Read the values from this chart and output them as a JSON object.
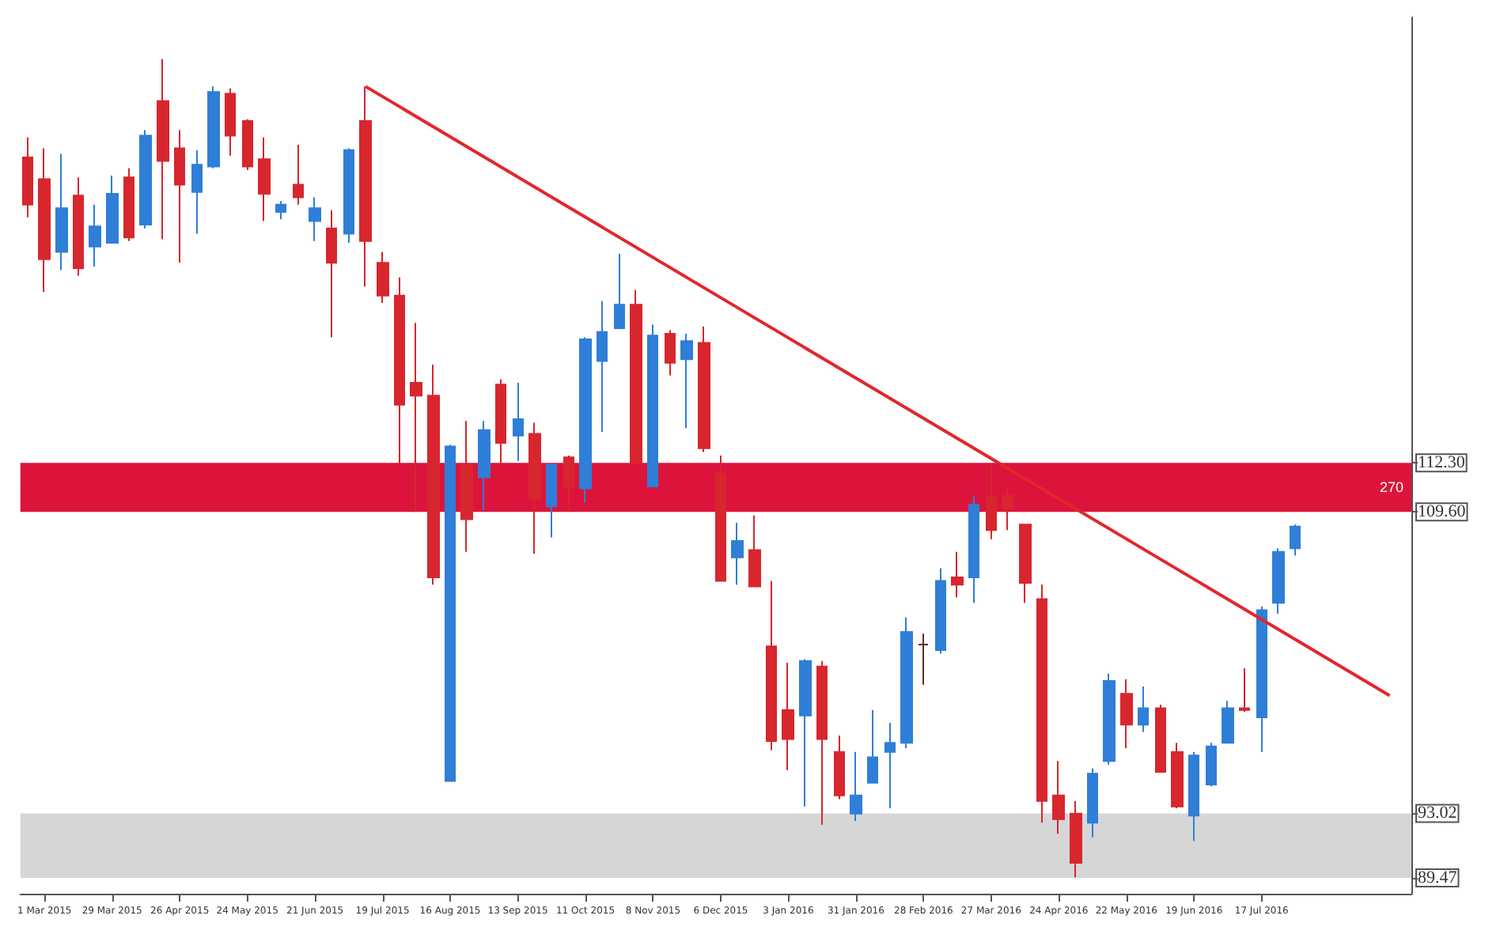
{
  "chart_data": {
    "type": "candlestick",
    "x": [
      "2015-02-22",
      "2015-03-01",
      "2015-03-08",
      "2015-03-15",
      "2015-03-22",
      "2015-03-29",
      "2015-04-05",
      "2015-04-12",
      "2015-04-19",
      "2015-04-26",
      "2015-05-03",
      "2015-05-10",
      "2015-05-17",
      "2015-05-24",
      "2015-05-31",
      "2015-06-07",
      "2015-06-14",
      "2015-06-21",
      "2015-06-28",
      "2015-07-05",
      "2015-07-12",
      "2015-07-19",
      "2015-07-26",
      "2015-08-02",
      "2015-08-09",
      "2015-08-16",
      "2015-08-23",
      "2015-08-30",
      "2015-09-06",
      "2015-09-13",
      "2015-09-20",
      "2015-09-27",
      "2015-10-04",
      "2015-10-11",
      "2015-10-18",
      "2015-10-25",
      "2015-11-01",
      "2015-11-08",
      "2015-11-15",
      "2015-11-22",
      "2015-11-29",
      "2015-12-06",
      "2015-12-13",
      "2015-12-20",
      "2015-12-27",
      "2016-01-03",
      "2016-01-10",
      "2016-01-17",
      "2016-01-24",
      "2016-01-31",
      "2016-02-07",
      "2016-02-14",
      "2016-02-21",
      "2016-02-28",
      "2016-03-06",
      "2016-03-13",
      "2016-03-20",
      "2016-03-27",
      "2016-04-03",
      "2016-04-10",
      "2016-04-17",
      "2016-04-24",
      "2016-05-01",
      "2016-05-08",
      "2016-05-15",
      "2016-05-22",
      "2016-05-29",
      "2016-06-05",
      "2016-06-12",
      "2016-06-19",
      "2016-06-26",
      "2016-07-03",
      "2016-07-10",
      "2016-07-17",
      "2016-07-24",
      "2016-07-31"
    ],
    "ohlc": [
      [
        129.1,
        130.2,
        125.8,
        126.5
      ],
      [
        127.9,
        129.6,
        121.7,
        123.5
      ],
      [
        123.9,
        129.3,
        122.9,
        126.3
      ],
      [
        127.0,
        128.0,
        122.6,
        123.0
      ],
      [
        124.2,
        126.5,
        123.1,
        125.3
      ],
      [
        124.4,
        128.1,
        124.4,
        127.1
      ],
      [
        128.0,
        128.5,
        124.5,
        124.7
      ],
      [
        125.4,
        130.6,
        125.2,
        130.3
      ],
      [
        132.2,
        134.5,
        124.6,
        128.9
      ],
      [
        129.6,
        130.6,
        123.3,
        127.6
      ],
      [
        127.2,
        129.5,
        124.9,
        128.7
      ],
      [
        128.6,
        133.0,
        128.5,
        132.7
      ],
      [
        132.6,
        132.9,
        129.2,
        130.3
      ],
      [
        131.1,
        131.2,
        128.4,
        128.6
      ],
      [
        129.0,
        130.2,
        125.6,
        127.1
      ],
      [
        126.1,
        126.7,
        125.7,
        126.5
      ],
      [
        127.6,
        129.8,
        126.5,
        126.9
      ],
      [
        125.6,
        126.9,
        124.5,
        126.3
      ],
      [
        125.2,
        126.2,
        119.2,
        123.3
      ],
      [
        124.9,
        129.6,
        124.4,
        129.5
      ],
      [
        131.1,
        133.0,
        122.0,
        124.5
      ],
      [
        123.3,
        123.9,
        121.1,
        121.5
      ],
      [
        121.5,
        122.5,
        112.1,
        115.5
      ],
      [
        116.7,
        120.0,
        109.6,
        116.0
      ],
      [
        116.0,
        117.7,
        105.6,
        106.0
      ],
      [
        94.8,
        113.3,
        94.8,
        113.2
      ],
      [
        112.2,
        114.6,
        107.4,
        109.2
      ],
      [
        111.5,
        114.6,
        109.7,
        114.1
      ],
      [
        116.6,
        116.9,
        112.1,
        113.4
      ],
      [
        113.8,
        116.7,
        112.4,
        114.7
      ],
      [
        113.9,
        114.5,
        107.3,
        110.3
      ],
      [
        109.9,
        112.2,
        108.2,
        112.2
      ],
      [
        112.6,
        112.7,
        109.6,
        111.0
      ],
      [
        110.9,
        119.2,
        110.1,
        119.1
      ],
      [
        117.9,
        121.2,
        114.0,
        119.5
      ],
      [
        119.7,
        123.8,
        119.7,
        121.0
      ],
      [
        121.0,
        121.8,
        112.3,
        112.3
      ],
      [
        111.0,
        119.9,
        111.0,
        119.3
      ],
      [
        119.4,
        119.6,
        117.1,
        117.8
      ],
      [
        118.0,
        119.4,
        114.2,
        119.0
      ],
      [
        118.9,
        119.8,
        112.9,
        113.1
      ],
      [
        111.7,
        112.7,
        105.8,
        105.8
      ],
      [
        107.1,
        109.0,
        105.6,
        108.0
      ],
      [
        107.5,
        109.4,
        105.5,
        105.5
      ],
      [
        102.2,
        105.8,
        96.5,
        97.0
      ],
      [
        98.7,
        101.3,
        95.4,
        97.1
      ],
      [
        98.4,
        101.5,
        93.4,
        101.4
      ],
      [
        101.1,
        101.4,
        92.4,
        97.1
      ],
      [
        96.4,
        97.3,
        93.8,
        94.0
      ],
      [
        93.0,
        96.4,
        92.6,
        94.0
      ],
      [
        94.7,
        98.7,
        94.7,
        96.1
      ],
      [
        96.4,
        98.0,
        93.3,
        96.9
      ],
      [
        96.9,
        103.8,
        96.6,
        103.0
      ],
      [
        102.3,
        102.9,
        100.1,
        102.3
      ],
      [
        102.0,
        106.5,
        101.8,
        105.8
      ],
      [
        106.0,
        107.4,
        104.9,
        105.6
      ],
      [
        106.0,
        110.5,
        104.6,
        110.0
      ],
      [
        110.4,
        112.2,
        108.1,
        108.6
      ],
      [
        110.5,
        110.9,
        108.6,
        109.8
      ],
      [
        108.9,
        108.9,
        104.6,
        105.7
      ],
      [
        104.8,
        105.6,
        92.5,
        93.7
      ],
      [
        94.0,
        95.9,
        91.9,
        92.7
      ],
      [
        93.0,
        93.7,
        89.5,
        90.3
      ],
      [
        92.5,
        95.5,
        91.7,
        95.2
      ],
      [
        95.9,
        100.7,
        95.7,
        100.3
      ],
      [
        99.6,
        100.4,
        96.6,
        97.9
      ],
      [
        97.9,
        100.0,
        97.5,
        98.8
      ],
      [
        98.8,
        99.0,
        95.3,
        95.3
      ],
      [
        96.4,
        96.9,
        93.3,
        93.4
      ],
      [
        92.9,
        96.4,
        91.5,
        96.2
      ],
      [
        94.6,
        96.9,
        94.5,
        96.7
      ],
      [
        96.9,
        99.2,
        96.9,
        98.8
      ],
      [
        98.8,
        101.0,
        98.6,
        98.7
      ],
      [
        98.3,
        104.4,
        96.4,
        104.2
      ],
      [
        104.6,
        107.6,
        104.0,
        107.4
      ],
      [
        107.6,
        108.9,
        107.2,
        108.8
      ]
    ],
    "colors": [
      "#d7262e",
      "#d7262e",
      "#2f7ed8",
      "#d7262e",
      "#2f7ed8",
      "#2f7ed8",
      "#d7262e",
      "#2f7ed8",
      "#d7262e",
      "#d7262e",
      "#2f7ed8",
      "#2f7ed8",
      "#d7262e",
      "#d7262e",
      "#d7262e",
      "#2f7ed8",
      "#d7262e",
      "#2f7ed8",
      "#d7262e",
      "#2f7ed8",
      "#d7262e",
      "#d7262e",
      "#d7262e",
      "#d7262e",
      "#d7262e",
      "#2f7ed8",
      "#d7262e",
      "#2f7ed8",
      "#d7262e",
      "#2f7ed8",
      "#d7262e",
      "#2f7ed8",
      "#d7262e",
      "#2f7ed8",
      "#2f7ed8",
      "#2f7ed8",
      "#d7262e",
      "#2f7ed8",
      "#d7262e",
      "#2f7ed8",
      "#d7262e",
      "#d7262e",
      "#2f7ed8",
      "#d7262e",
      "#d7262e",
      "#d7262e",
      "#2f7ed8",
      "#d7262e",
      "#d7262e",
      "#2f7ed8",
      "#2f7ed8",
      "#2f7ed8",
      "#2f7ed8",
      "#6b2a2a",
      "#2f7ed8",
      "#d7262e",
      "#2f7ed8",
      "#d7262e",
      "#d7262e",
      "#d7262e",
      "#d7262e",
      "#d7262e",
      "#d7262e",
      "#2f7ed8",
      "#2f7ed8",
      "#d7262e",
      "#2f7ed8",
      "#d7262e",
      "#d7262e",
      "#2f7ed8",
      "#2f7ed8",
      "#2f7ed8",
      "#d7262e",
      "#2f7ed8",
      "#2f7ed8",
      "#2f7ed8"
    ],
    "series": [
      {
        "type": "line",
        "color": "#e3262b",
        "x": [
          "2015-07-12",
          "2016-09-08"
        ],
        "values": [
          133.0,
          99.5
        ]
      }
    ],
    "marker": "none",
    "bands": [
      {
        "axis": "y",
        "from": 109.6,
        "to": 112.3,
        "label": "270",
        "color": "#dc143c"
      },
      {
        "axis": "y",
        "from": 89.47,
        "to": 93.02,
        "color": "#d6d6d6"
      }
    ],
    "xlim": [
      "2015-02-19",
      "2016-09-17"
    ],
    "xticks": [
      {
        "value": "2015-03-01",
        "label": "1 Mar 2015"
      },
      {
        "value": "2015-03-29",
        "label": "29 Mar 2015"
      },
      {
        "value": "2015-04-26",
        "label": "26 Apr 2015"
      },
      {
        "value": "2015-05-24",
        "label": "24 May 2015"
      },
      {
        "value": "2015-06-21",
        "label": "21 Jun 2015"
      },
      {
        "value": "2015-07-19",
        "label": "19 Jul 2015"
      },
      {
        "value": "2015-08-16",
        "label": "16 Aug 2015"
      },
      {
        "value": "2015-09-13",
        "label": "13 Sep 2015"
      },
      {
        "value": "2015-10-11",
        "label": "11 Oct 2015"
      },
      {
        "value": "2015-11-08",
        "label": "8 Nov 2015"
      },
      {
        "value": "2015-12-06",
        "label": "6 Dec 2015"
      },
      {
        "value": "2016-01-03",
        "label": "3 Jan 2016"
      },
      {
        "value": "2016-01-31",
        "label": "31 Jan 2016"
      },
      {
        "value": "2016-02-28",
        "label": "28 Feb 2016"
      },
      {
        "value": "2016-03-27",
        "label": "27 Mar 2016"
      },
      {
        "value": "2016-04-24",
        "label": "24 Apr 2016"
      },
      {
        "value": "2016-05-22",
        "label": "22 May 2016"
      },
      {
        "value": "2016-06-19",
        "label": "19 Jun 2016"
      },
      {
        "value": "2016-07-17",
        "label": "17 Jul 2016"
      }
    ],
    "ylim": [
      88.6,
      136.8
    ],
    "yticks": [
      {
        "value": 112.3,
        "label": "112.30"
      },
      {
        "value": 109.6,
        "label": "109.60"
      },
      {
        "value": 93.02,
        "label": "93.02"
      },
      {
        "value": 89.47,
        "label": "89.47"
      }
    ],
    "log": false
  }
}
